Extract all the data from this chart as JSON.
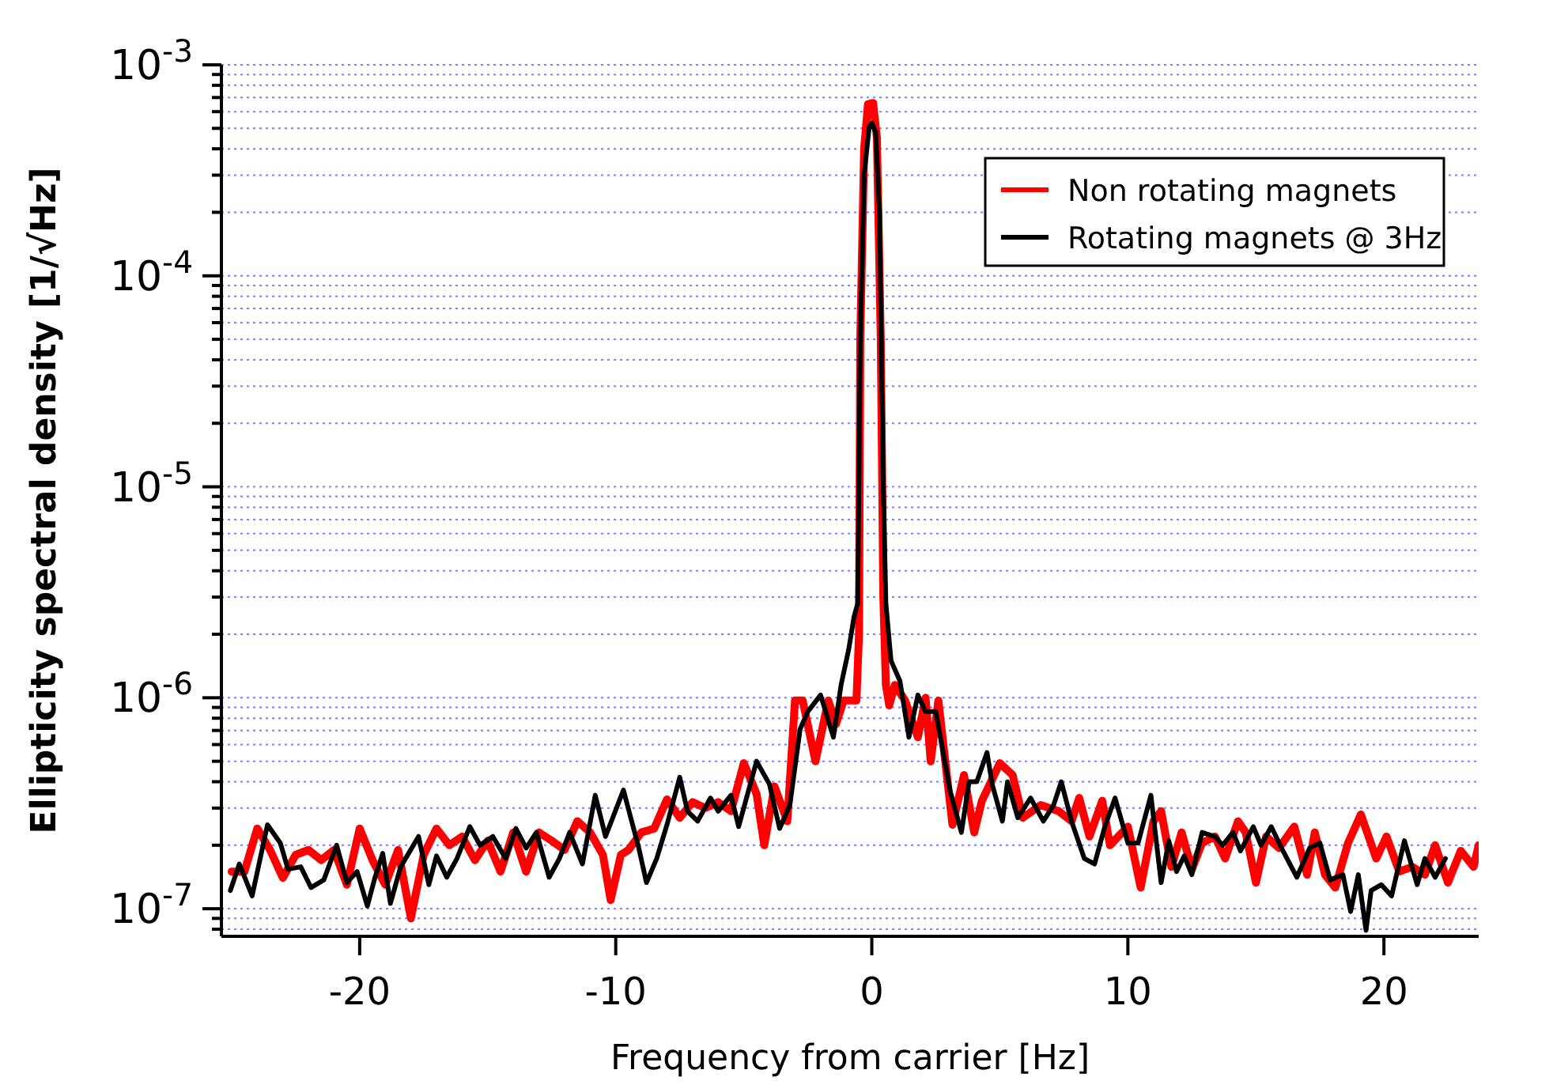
{
  "chart_data": {
    "type": "line",
    "xlabel": "Frequency from carrier [Hz]",
    "ylabel": "Ellipticity spectral density [1/√Hz]",
    "log": "y",
    "grid": "y",
    "legend": "top right",
    "line_style": "solid",
    "marker": "none",
    "xlim": [
      -25.4,
      23.7
    ],
    "xticks": [
      -20,
      -10,
      0,
      10,
      20
    ],
    "ylim": [
      7.4e-08,
      0.001
    ],
    "yticks": [
      {
        "value": 8e-08,
        "label": null
      },
      {
        "value": 9e-08,
        "label": null
      },
      {
        "value": 1e-07,
        "label": "10$^{-7}$"
      },
      {
        "value": 2e-07,
        "label": null
      },
      {
        "value": 3e-07,
        "label": null
      },
      {
        "value": 4e-07,
        "label": null
      },
      {
        "value": 5e-07,
        "label": null
      },
      {
        "value": 6e-07,
        "label": null
      },
      {
        "value": 7e-07,
        "label": null
      },
      {
        "value": 8e-07,
        "label": null
      },
      {
        "value": 9e-07,
        "label": null
      },
      {
        "value": 1e-06,
        "label": "10$^{-6}$"
      },
      {
        "value": 2e-06,
        "label": null
      },
      {
        "value": 3e-06,
        "label": null
      },
      {
        "value": 4e-06,
        "label": null
      },
      {
        "value": 5e-06,
        "label": null
      },
      {
        "value": 6e-06,
        "label": null
      },
      {
        "value": 7e-06,
        "label": null
      },
      {
        "value": 8e-06,
        "label": null
      },
      {
        "value": 9e-06,
        "label": null
      },
      {
        "value": 1e-05,
        "label": "10$^{-5}$"
      },
      {
        "value": 2e-05,
        "label": null
      },
      {
        "value": 3e-05,
        "label": null
      },
      {
        "value": 4e-05,
        "label": null
      },
      {
        "value": 5e-05,
        "label": null
      },
      {
        "value": 6e-05,
        "label": null
      },
      {
        "value": 7e-05,
        "label": null
      },
      {
        "value": 8e-05,
        "label": null
      },
      {
        "value": 9e-05,
        "label": null
      },
      {
        "value": 0.0001,
        "label": "10$^{-4}$"
      },
      {
        "value": 0.0002,
        "label": null
      },
      {
        "value": 0.0003,
        "label": null
      },
      {
        "value": 0.0004,
        "label": null
      },
      {
        "value": 0.0005,
        "label": null
      },
      {
        "value": 0.0006,
        "label": null
      },
      {
        "value": 0.0007,
        "label": null
      },
      {
        "value": 0.0008,
        "label": null
      },
      {
        "value": 0.0009,
        "label": null
      },
      {
        "value": 0.001,
        "label": "10$^{-3}$"
      }
    ],
    "series": [
      {
        "name": "Non rotating magnets",
        "color": "#ff0000",
        "x": [
          -25,
          -24.5,
          -24,
          -23.5,
          -23,
          -22.5,
          -22,
          -21.5,
          -21,
          -20.5,
          -20,
          -19.5,
          -19,
          -18.5,
          -18,
          -17.5,
          -17,
          -16.5,
          -16,
          -15.5,
          -15,
          -14.5,
          -14,
          -13.5,
          -13,
          -12.5,
          -12,
          -11.5,
          -11,
          -10.5,
          -10.2,
          -9.8,
          -9.5,
          -9,
          -8.5,
          -8,
          -7.5,
          -7,
          -6.5,
          -6,
          -5.5,
          -5,
          -4.5,
          -4.2,
          -3.8,
          -3.3,
          -3.0,
          -2.7,
          -2.2,
          -1.7,
          -1.4,
          -1.1,
          -0.6,
          -0.5,
          -0.45,
          -0.3,
          -0.15,
          0.05,
          0.2,
          0.35,
          0.45,
          0.55,
          0.68,
          0.9,
          1.3,
          1.8,
          2.1,
          2.3,
          2.6,
          3.15,
          3.6,
          4.0,
          4.3,
          5.0,
          5.5,
          5.9,
          6.6,
          7.3,
          7.8,
          8.1,
          8.5,
          9.0,
          9.3,
          10.0,
          10.5,
          11.0,
          11.3,
          11.7,
          12.1,
          12.5,
          12.9,
          13.4,
          13.8,
          14.3,
          14.6,
          15.0,
          15.4,
          15.9,
          16.5,
          17.0,
          17.3,
          17.7,
          18.1,
          18.6,
          19.1,
          19.7,
          20.1,
          20.6,
          21.1,
          21.6,
          22.0,
          22.5,
          23.0,
          23.5,
          23.7
        ],
        "values": [
          1.5e-07,
          1.5e-07,
          2.4e-07,
          1.9e-07,
          1.4e-07,
          1.8e-07,
          1.9e-07,
          1.7e-07,
          1.9e-07,
          1.3e-07,
          2.4e-07,
          1.7e-07,
          1.3e-07,
          1.9e-07,
          9e-08,
          1.8e-07,
          2.4e-07,
          2e-07,
          2.2e-07,
          1.7e-07,
          2.1e-07,
          1.5e-07,
          2.3e-07,
          1.5e-07,
          2.3e-07,
          2.1e-07,
          1.9e-07,
          2.6e-07,
          2.3e-07,
          1.8e-07,
          1.1e-07,
          1.8e-07,
          1.9e-07,
          2.3e-07,
          2.4e-07,
          3.3e-07,
          2.7e-07,
          3.2e-07,
          3e-07,
          3.2e-07,
          2.9e-07,
          4.9e-07,
          3.5e-07,
          2e-07,
          3.8e-07,
          2.6e-07,
          9.7e-07,
          9.7e-07,
          5e-07,
          9.7e-07,
          7.5e-07,
          9.7e-07,
          9.7e-07,
          2e-06,
          5e-05,
          0.0004,
          0.00065,
          0.00066,
          0.00045,
          5e-05,
          3e-06,
          1.15e-06,
          9.2e-07,
          1.15e-06,
          9.7e-07,
          6.5e-07,
          1e-06,
          5e-07,
          9.7e-07,
          2.5e-07,
          4.3e-07,
          2.3e-07,
          3.25e-07,
          4.9e-07,
          4.3e-07,
          2.7e-07,
          3.1e-07,
          2.9e-07,
          2.6e-07,
          3.35e-07,
          2.2e-07,
          3.25e-07,
          2e-07,
          2.45e-07,
          1.26e-07,
          2.6e-07,
          2.9e-07,
          1.58e-07,
          2.3e-07,
          1.54e-07,
          2.05e-07,
          2.2e-07,
          1.73e-07,
          2.6e-07,
          2.3e-07,
          1.33e-07,
          2.2e-07,
          1.94e-07,
          2.45e-07,
          1.45e-07,
          2.3e-07,
          1.45e-07,
          1.26e-07,
          2.05e-07,
          2.8e-07,
          1.73e-07,
          2.2e-07,
          1.5e-07,
          1.58e-07,
          1.45e-07,
          2e-07,
          1.33e-07,
          1.88e-07,
          1.58e-07,
          2e-07
        ]
      },
      {
        "name": "Rotating magnets @ 3Hz",
        "color": "#000000",
        "x": [
          -25.05,
          -24.7,
          -24.2,
          -23.6,
          -23.1,
          -22.8,
          -22.3,
          -21.9,
          -21.4,
          -20.9,
          -20.5,
          -20.1,
          -19.7,
          -19.4,
          -19.1,
          -18.8,
          -18.4,
          -17.7,
          -17.3,
          -17.0,
          -16.6,
          -16.2,
          -15.7,
          -15.3,
          -14.8,
          -14.3,
          -13.9,
          -13.5,
          -13.1,
          -12.6,
          -12.2,
          -11.8,
          -11.3,
          -10.8,
          -10.4,
          -9.7,
          -9.1,
          -8.8,
          -8.4,
          -8.0,
          -7.5,
          -7.2,
          -6.8,
          -6.3,
          -6.0,
          -5.5,
          -5.2,
          -4.5,
          -4.0,
          -3.6,
          -3.2,
          -2.8,
          -2.5,
          -2.0,
          -1.5,
          -1.2,
          -0.9,
          -0.7,
          -0.55,
          -0.45,
          -0.3,
          -0.1,
          0,
          0.15,
          0.3,
          0.45,
          0.55,
          0.75,
          1.1,
          1.45,
          1.8,
          2.1,
          2.5,
          3.05,
          3.5,
          3.8,
          4.1,
          4.5,
          4.7,
          5.1,
          5.3,
          5.7,
          6.2,
          6.7,
          7.1,
          7.4,
          7.8,
          8.3,
          8.7,
          9.1,
          9.5,
          10.0,
          10.4,
          10.9,
          11.3,
          11.6,
          11.9,
          12.2,
          12.5,
          12.9,
          13.4,
          13.7,
          14.1,
          14.4,
          14.9,
          15.2,
          15.6,
          16.0,
          16.6,
          17.1,
          17.5,
          17.9,
          18.4,
          18.7,
          19.0,
          19.3,
          19.5,
          19.9,
          20.3,
          20.8,
          21.3,
          21.6,
          22.0,
          22.4
        ],
        "values": [
          1.22e-07,
          1.63e-07,
          1.15e-07,
          2.5e-07,
          2.05e-07,
          1.54e-07,
          1.58e-07,
          1.26e-07,
          1.37e-07,
          2e-07,
          1.33e-07,
          1.5e-07,
          1.03e-07,
          1.41e-07,
          1.83e-07,
          1.06e-07,
          1.58e-07,
          2.2e-07,
          1.3e-07,
          1.78e-07,
          1.41e-07,
          1.73e-07,
          2.45e-07,
          2e-07,
          2.2e-07,
          1.73e-07,
          2.4e-07,
          1.94e-07,
          2.3e-07,
          1.41e-07,
          1.73e-07,
          2.3e-07,
          1.63e-07,
          3.45e-07,
          2.2e-07,
          3.65e-07,
          1.94e-07,
          1.33e-07,
          1.73e-07,
          2.5e-07,
          4.2e-07,
          2.9e-07,
          2.6e-07,
          3.35e-07,
          2.9e-07,
          3.45e-07,
          2.45e-07,
          5e-07,
          3.9e-07,
          2.4e-07,
          3.1e-07,
          7.1e-07,
          8.6e-07,
          1.03e-06,
          6.5e-07,
          1.15e-06,
          1.7e-06,
          2.4e-06,
          2.8e-06,
          5e-05,
          0.0003,
          0.00051,
          0.00053,
          0.00048,
          0.0002,
          1e-05,
          2.8e-06,
          1.5e-06,
          1.2e-06,
          6.5e-07,
          1.03e-06,
          8.6e-07,
          8.6e-07,
          3.65e-07,
          2.3e-07,
          4e-07,
          4e-07,
          5.5e-07,
          3.9e-07,
          2.6e-07,
          4e-07,
          2.7e-07,
          3.35e-07,
          2.6e-07,
          3.1e-07,
          4e-07,
          2.6e-07,
          1.73e-07,
          1.63e-07,
          2.45e-07,
          3.35e-07,
          2.05e-07,
          2.05e-07,
          3.45e-07,
          1.33e-07,
          2.1e-07,
          1.5e-07,
          1.78e-07,
          1.45e-07,
          2.3e-07,
          2.2e-07,
          2e-07,
          2.3e-07,
          1.88e-07,
          2.45e-07,
          2e-07,
          2.45e-07,
          1.94e-07,
          1.41e-07,
          1.94e-07,
          2.05e-07,
          1.37e-07,
          1.45e-07,
          9.7e-08,
          1.45e-07,
          7.9e-08,
          1.22e-07,
          1.3e-07,
          1.15e-07,
          2.1e-07,
          1.3e-07,
          1.73e-07,
          1.41e-07,
          1.73e-07
        ]
      }
    ]
  }
}
